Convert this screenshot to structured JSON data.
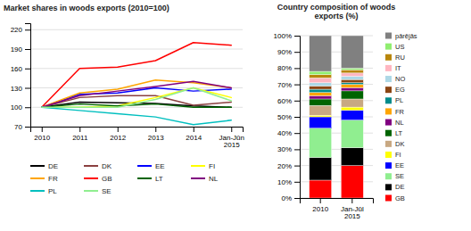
{
  "chart_data": [
    {
      "type": "line",
      "title": "Market shares in woods exports (2010=100)",
      "categories": [
        "2010",
        "2011",
        "2012",
        "2013",
        "2014",
        "Jan-Jūn\n2015"
      ],
      "series": [
        {
          "name": "DE",
          "color": "#000000",
          "values": [
            100,
            108,
            107,
            106,
            102,
            100
          ]
        },
        {
          "name": "DK",
          "color": "#8B4040",
          "values": [
            100,
            115,
            118,
            118,
            103,
            108
          ]
        },
        {
          "name": "EE",
          "color": "#0000FF",
          "values": [
            100,
            120,
            122,
            130,
            125,
            128
          ]
        },
        {
          "name": "FI",
          "color": "#FFFF00",
          "values": [
            100,
            100,
            102,
            115,
            130,
            115
          ]
        },
        {
          "name": "FR",
          "color": "#FFA500",
          "values": [
            100,
            122,
            128,
            142,
            138,
            130
          ]
        },
        {
          "name": "GB",
          "color": "#FF0000",
          "values": [
            100,
            160,
            162,
            172,
            200,
            196
          ]
        },
        {
          "name": "LT",
          "color": "#006400",
          "values": [
            100,
            105,
            102,
            105,
            100,
            100
          ]
        },
        {
          "name": "NL",
          "color": "#800080",
          "values": [
            100,
            118,
            125,
            132,
            140,
            130
          ]
        },
        {
          "name": "PL",
          "color": "#00BFBF",
          "values": [
            100,
            95,
            90,
            85,
            73,
            80
          ]
        },
        {
          "name": "SE",
          "color": "#90EE90",
          "values": [
            100,
            100,
            100,
            112,
            130,
            110
          ]
        }
      ],
      "ylim": [
        70,
        230
      ],
      "yticks": [
        70,
        100,
        130,
        160,
        190,
        220
      ],
      "grid": true,
      "legend": "bottom"
    },
    {
      "type": "bar",
      "title": "Country composition of woods\nexports (%)",
      "categories": [
        "2010",
        "Jan-Jūl\n2015"
      ],
      "stacked": true,
      "series": [
        {
          "name": "GB",
          "color": "#FF0000",
          "values": [
            11,
            20
          ]
        },
        {
          "name": "DE",
          "color": "#000000",
          "values": [
            14,
            11
          ]
        },
        {
          "name": "SE",
          "color": "#90EE90",
          "values": [
            18,
            17
          ]
        },
        {
          "name": "EE",
          "color": "#0000FF",
          "values": [
            7,
            6
          ]
        },
        {
          "name": "FI",
          "color": "#FFFF00",
          "values": [
            1,
            2
          ]
        },
        {
          "name": "DK",
          "color": "#C8A882",
          "values": [
            6,
            5
          ]
        },
        {
          "name": "LT",
          "color": "#006400",
          "values": [
            4,
            5
          ]
        },
        {
          "name": "NL",
          "color": "#800080",
          "values": [
            2,
            2
          ]
        },
        {
          "name": "FR",
          "color": "#FFA500",
          "values": [
            2,
            2
          ]
        },
        {
          "name": "PL",
          "color": "#008B8B",
          "values": [
            2,
            1
          ]
        },
        {
          "name": "EG",
          "color": "#8B4513",
          "values": [
            2,
            2
          ]
        },
        {
          "name": "NO",
          "color": "#ADD8E6",
          "values": [
            2,
            2
          ]
        },
        {
          "name": "IT",
          "color": "#FFB6C1",
          "values": [
            3,
            2
          ]
        },
        {
          "name": "RU",
          "color": "#B8860B",
          "values": [
            2,
            2
          ]
        },
        {
          "name": "US",
          "color": "#90EE70",
          "values": [
            2,
            1
          ]
        },
        {
          "name": "pārējās",
          "color": "#808080",
          "values": [
            22,
            20
          ]
        }
      ],
      "ylim": [
        0,
        100
      ],
      "yticks": [
        {
          "value": 0,
          "label": "0%"
        },
        {
          "value": 10,
          "label": "10%"
        },
        {
          "value": 20,
          "label": "20%"
        },
        {
          "value": 30,
          "label": "30%"
        },
        {
          "value": 40,
          "label": "40%"
        },
        {
          "value": 50,
          "label": "50%"
        },
        {
          "value": 60,
          "label": "60%"
        },
        {
          "value": 70,
          "label": "70%"
        },
        {
          "value": 80,
          "label": "80%"
        },
        {
          "value": 90,
          "label": "90%"
        },
        {
          "value": 100,
          "label": "100%"
        }
      ],
      "grid": true,
      "legend": "right"
    }
  ]
}
